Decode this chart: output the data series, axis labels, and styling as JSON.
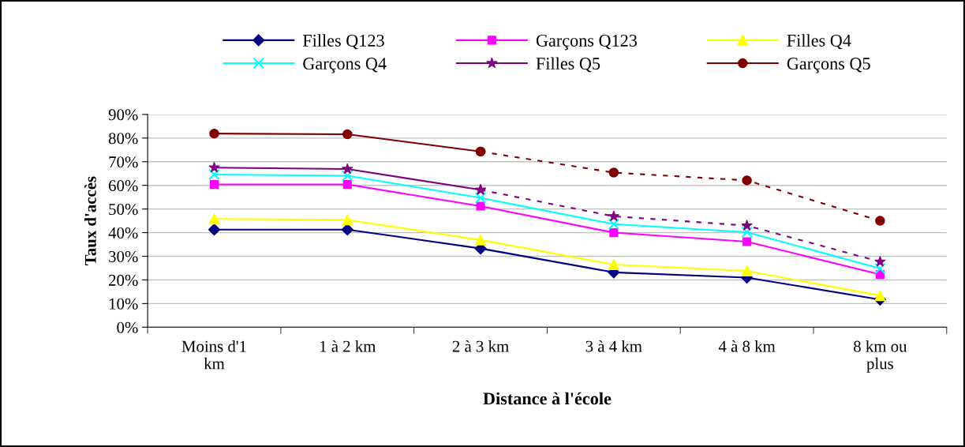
{
  "chart_data": {
    "type": "line",
    "xlabel": "Distance à l'école",
    "ylabel": "Taux d'accès",
    "categories": [
      "Moins d'1\nkm",
      "1 à 2 km",
      "2 à 3 km",
      "3 à 4 km",
      "4 à 8 km",
      "8 km ou\nplus"
    ],
    "series": [
      {
        "name": "Filles Q123",
        "color": "#000080",
        "marker": "diamond",
        "values": [
          41.3,
          41.3,
          33.3,
          23.2,
          21.0,
          11.7
        ]
      },
      {
        "name": "Garçons Q123",
        "color": "#ff00ff",
        "marker": "square",
        "values": [
          60.4,
          60.4,
          51.2,
          40.0,
          36.2,
          22.3
        ]
      },
      {
        "name": "Filles Q4",
        "color": "#ffff00",
        "marker": "triangle",
        "values": [
          45.8,
          45.4,
          36.9,
          26.5,
          23.8,
          13.4
        ]
      },
      {
        "name": "Garçons Q4",
        "color": "#00ffff",
        "marker": "cross",
        "values": [
          64.6,
          64.1,
          54.7,
          43.6,
          40.2,
          24.8
        ]
      },
      {
        "name": "Filles Q5",
        "color": "#800080",
        "marker": "star",
        "values": [
          67.5,
          66.9,
          58.1,
          null,
          null,
          null
        ]
      },
      {
        "name": "Garçons Q5",
        "color": "#800000",
        "marker": "circle",
        "values": [
          81.9,
          81.6,
          74.3,
          null,
          null,
          null
        ]
      },
      {
        "color": "#800080",
        "marker": "star",
        "line_style": "dashed",
        "values": [
          null,
          null,
          58.1,
          46.9,
          43.0,
          27.7
        ]
      },
      {
        "color": "#800000",
        "marker": "circle",
        "line_style": "dashed",
        "values": [
          null,
          null,
          74.3,
          65.4,
          62.1,
          45.0
        ]
      }
    ],
    "ylim": [
      0,
      90
    ],
    "yticks": [
      {
        "value": 0,
        "label": "0%"
      },
      {
        "value": 10,
        "label": "10%"
      },
      {
        "value": 20,
        "label": "20%"
      },
      {
        "value": 30,
        "label": "30%"
      },
      {
        "value": 40,
        "label": "40%"
      },
      {
        "value": 50,
        "label": "50%"
      },
      {
        "value": 60,
        "label": "60%"
      },
      {
        "value": 70,
        "label": "70%"
      },
      {
        "value": 80,
        "label": "80%"
      },
      {
        "value": 90,
        "label": "90%"
      }
    ],
    "grid": "y",
    "legend": "top",
    "line_style": "solid"
  }
}
